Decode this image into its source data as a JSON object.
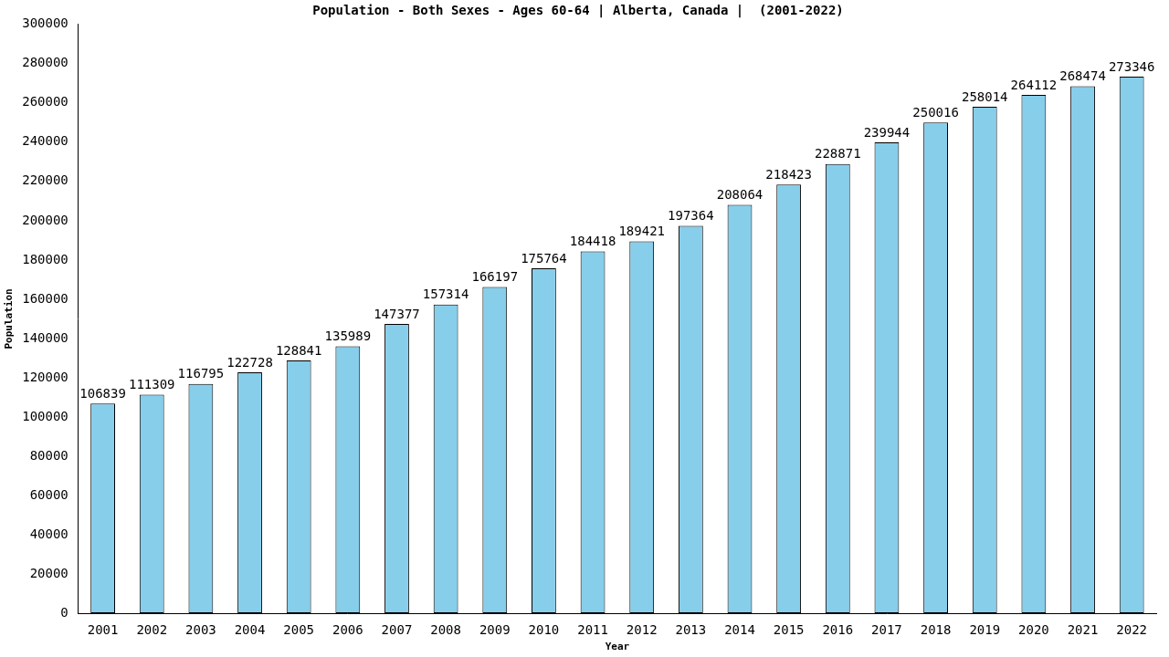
{
  "chart_data": {
    "type": "bar",
    "title": "Population - Both Sexes - Ages 60-64 | Alberta, Canada |  (2001-2022)",
    "x_label": "Year",
    "y_label": "Population",
    "categories": [
      "2001",
      "2002",
      "2003",
      "2004",
      "2005",
      "2006",
      "2007",
      "2008",
      "2009",
      "2010",
      "2011",
      "2012",
      "2013",
      "2014",
      "2015",
      "2016",
      "2017",
      "2018",
      "2019",
      "2020",
      "2021",
      "2022"
    ],
    "values": [
      106839,
      111309,
      116795,
      122728,
      128841,
      135989,
      147377,
      157314,
      166197,
      175764,
      184418,
      189421,
      197364,
      208064,
      218423,
      228871,
      239944,
      250016,
      258014,
      264112,
      268474,
      273346
    ],
    "color": "#87ceeb",
    "ylim": [
      0,
      300000
    ],
    "yticks": [
      0,
      20000,
      40000,
      60000,
      80000,
      100000,
      120000,
      140000,
      160000,
      180000,
      200000,
      220000,
      240000,
      260000,
      280000,
      300000
    ],
    "grid": false,
    "data_labels": true
  }
}
